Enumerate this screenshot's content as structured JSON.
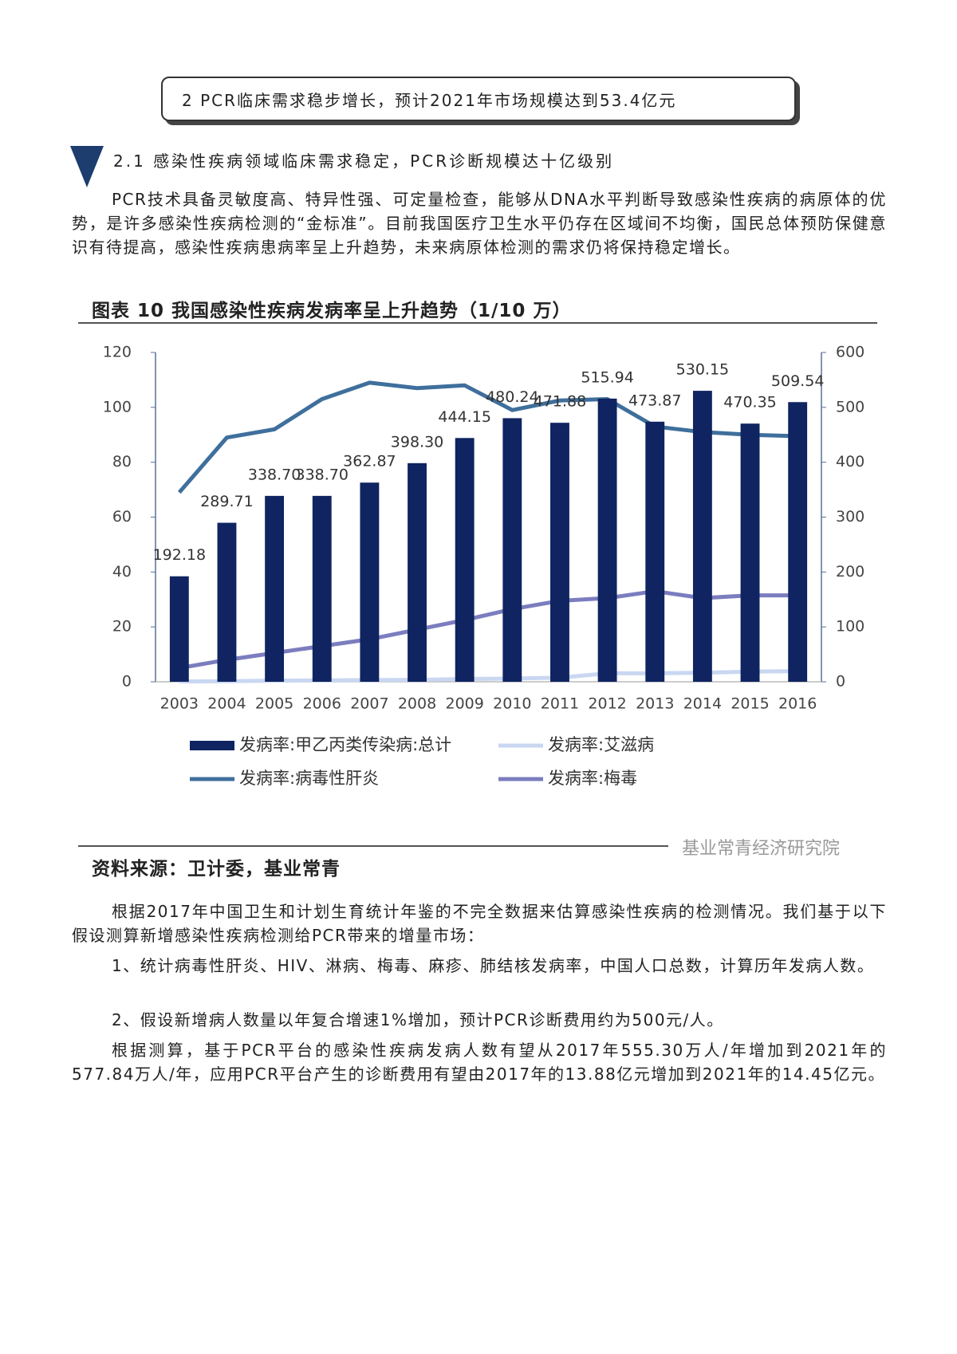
{
  "header": {
    "title": "2 PCR临床需求稳步增长，预计2021年市场规模达到53.4亿元"
  },
  "section": {
    "title": "2.1 感染性疾病领域临床需求稳定，PCR诊断规模达十亿级别"
  },
  "intro": "PCR技术具备灵敏度高、特异性强、可定量检查，能够从DNA水平判断导致感染性疾病的病原体的优势，是许多感染性疾病检测的“金标准”。目前我国医疗卫生水平仍存在区域间不均衡，国民总体预防保健意识有待提高，感染性疾病患病率呈上升趋势，未来病原体检测的需求仍将保持稳定增长。",
  "figure": {
    "title": "图表 10 我国感染性疾病发病率呈上升趋势（1/10 万）",
    "source": "资料来源：卫计委，基业常青",
    "watermark": "基业常青经济研究院"
  },
  "chart_data": {
    "type": "bar_line",
    "categories": [
      "2003",
      "2004",
      "2005",
      "2006",
      "2007",
      "2008",
      "2009",
      "2010",
      "2011",
      "2012",
      "2013",
      "2014",
      "2015",
      "2016"
    ],
    "ylim": [
      0,
      120
    ],
    "yticks": [
      0,
      20,
      40,
      60,
      80,
      100,
      120
    ],
    "y2lim": [
      0,
      600
    ],
    "y2ticks": [
      0,
      100,
      200,
      300,
      400,
      500,
      600
    ],
    "series": [
      {
        "name": "发病率:甲乙丙类传染病:总计",
        "type": "bar",
        "axis": "y2",
        "color": "#0f2460",
        "values": [
          192.18,
          289.71,
          338.7,
          338.7,
          362.87,
          398.3,
          444.15,
          480.24,
          471.88,
          515.94,
          473.87,
          530.15,
          470.35,
          509.54
        ],
        "value_labels": [
          "192.18",
          "289.71",
          "338.70",
          "338.70",
          "362.87",
          "398.30",
          "444.15",
          "480.24",
          "471.88",
          "515.94",
          "473.87",
          "530.15",
          "470.35",
          "509.54"
        ]
      },
      {
        "name": "发病率:艾滋病",
        "type": "line",
        "color": "#c9d7f1",
        "values": [
          0.1,
          0.2,
          0.4,
          0.5,
          0.6,
          0.7,
          1.0,
          1.2,
          1.5,
          3.1,
          3.1,
          3.3,
          3.7,
          3.9
        ]
      },
      {
        "name": "发病率:病毒性肝炎",
        "type": "line",
        "color": "#3f6f9c",
        "values": [
          69,
          89,
          92,
          103,
          109,
          107,
          108,
          99,
          102.5,
          103,
          93,
          91,
          90,
          89.5
        ]
      },
      {
        "name": "发病率:梅毒",
        "type": "line",
        "color": "#7b7dbf",
        "values": [
          5,
          8,
          10.5,
          13,
          15.5,
          19,
          22.5,
          26.5,
          29.5,
          30.5,
          33,
          30.5,
          31.5,
          31.5
        ]
      }
    ]
  },
  "body": [
    "根据2017年中国卫生和计划生育统计年鉴的不完全数据来估算感染性疾病的检测情况。我们基于以下假设测算新增感染性疾病检测给PCR带来的增量市场：",
    "1、统计病毒性肝炎、HIV、淋病、梅毒、麻疹、肺结核发病率，中国人口总数，计算历年发病人数。",
    "2、假设新增病人数量以年复合增速1%增加，预计PCR诊断费用约为500元/人。",
    "根据测算，基于PCR平台的感染性疾病发病人数有望从2017年555.30万人/年增加到2021年的577.84万人/年，应用PCR平台产生的诊断费用有望由2017年的13.88亿元增加到2021年的14.45亿元。"
  ]
}
